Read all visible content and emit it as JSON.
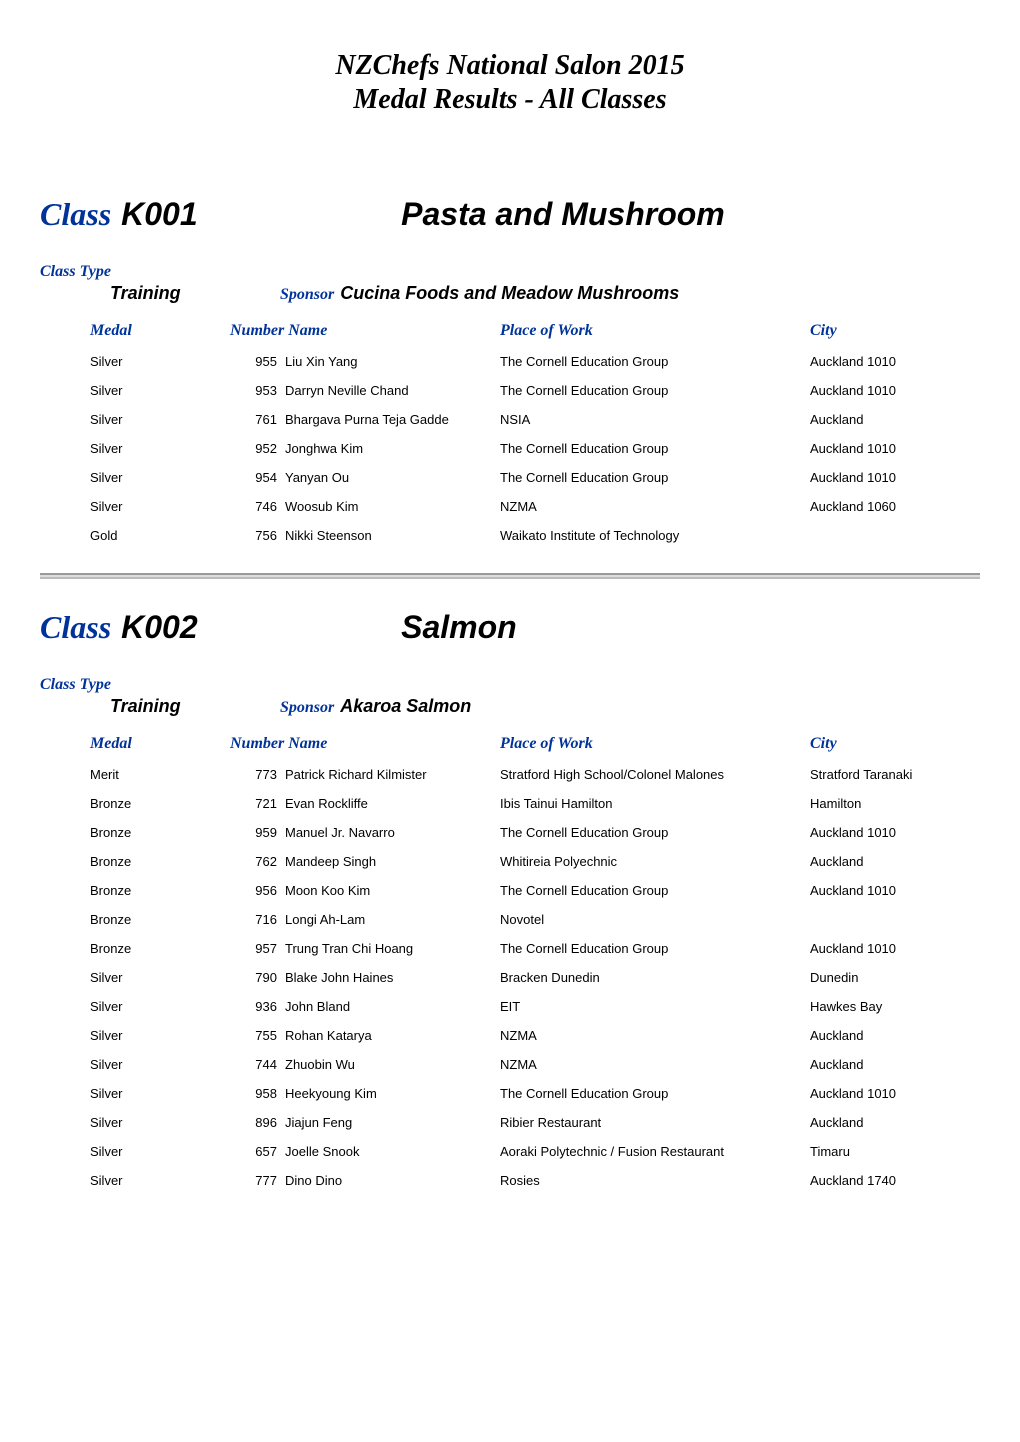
{
  "doc_title": "NZChefs National Salon 2015",
  "doc_subtitle": "Medal Results - All Classes",
  "labels": {
    "class": "Class",
    "class_type": "Class Type",
    "sponsor": "Sponsor",
    "medal": "Medal",
    "number": "Number",
    "name": "Name",
    "place_of_work": "Place of Work",
    "city": "City"
  },
  "classes": [
    {
      "code": "K001",
      "name": "Pasta and Mushroom",
      "type": "Training",
      "sponsor": "Cucina Foods and Meadow Mushrooms",
      "rows": [
        {
          "medal": "Silver",
          "number": "955",
          "name": "Liu Xin Yang",
          "place": "The Cornell Education Group",
          "city": "Auckland 1010"
        },
        {
          "medal": "Silver",
          "number": "953",
          "name": "Darryn Neville Chand",
          "place": "The Cornell Education Group",
          "city": "Auckland 1010"
        },
        {
          "medal": "Silver",
          "number": "761",
          "name": "Bhargava Purna Teja Gadde",
          "place": "NSIA",
          "city": "Auckland"
        },
        {
          "medal": "Silver",
          "number": "952",
          "name": "Jonghwa Kim",
          "place": "The Cornell Education Group",
          "city": "Auckland 1010"
        },
        {
          "medal": "Silver",
          "number": "954",
          "name": "Yanyan Ou",
          "place": "The Cornell Education Group",
          "city": "Auckland 1010"
        },
        {
          "medal": "Silver",
          "number": "746",
          "name": "Woosub Kim",
          "place": "NZMA",
          "city": "Auckland 1060"
        },
        {
          "medal": "Gold",
          "number": "756",
          "name": "Nikki Steenson",
          "place": "Waikato Institute of Technology",
          "city": ""
        }
      ]
    },
    {
      "code": "K002",
      "name": "Salmon",
      "type": "Training",
      "sponsor": "Akaroa Salmon",
      "rows": [
        {
          "medal": "Merit",
          "number": "773",
          "name": "Patrick Richard Kilmister",
          "place": "Stratford High School/Colonel Malones",
          "city": "Stratford Taranaki"
        },
        {
          "medal": "Bronze",
          "number": "721",
          "name": "Evan Rockliffe",
          "place": "Ibis Tainui Hamilton",
          "city": "Hamilton"
        },
        {
          "medal": "Bronze",
          "number": "959",
          "name": "Manuel Jr. Navarro",
          "place": "The Cornell Education Group",
          "city": "Auckland 1010"
        },
        {
          "medal": "Bronze",
          "number": "762",
          "name": "Mandeep Singh",
          "place": "Whitireia Polyechnic",
          "city": "Auckland"
        },
        {
          "medal": "Bronze",
          "number": "956",
          "name": "Moon Koo Kim",
          "place": "The Cornell Education Group",
          "city": "Auckland 1010"
        },
        {
          "medal": "Bronze",
          "number": "716",
          "name": "Longi Ah-Lam",
          "place": "Novotel",
          "city": ""
        },
        {
          "medal": "Bronze",
          "number": "957",
          "name": "Trung Tran Chi Hoang",
          "place": "The Cornell Education Group",
          "city": "Auckland 1010"
        },
        {
          "medal": "Silver",
          "number": "790",
          "name": "Blake John Haines",
          "place": "Bracken Dunedin",
          "city": "Dunedin"
        },
        {
          "medal": "Silver",
          "number": "936",
          "name": "John Bland",
          "place": "EIT",
          "city": "Hawkes Bay"
        },
        {
          "medal": "Silver",
          "number": "755",
          "name": "Rohan Katarya",
          "place": "NZMA",
          "city": "Auckland"
        },
        {
          "medal": "Silver",
          "number": "744",
          "name": "Zhuobin Wu",
          "place": "NZMA",
          "city": "Auckland"
        },
        {
          "medal": "Silver",
          "number": "958",
          "name": "Heekyoung Kim",
          "place": "The Cornell Education Group",
          "city": "Auckland 1010"
        },
        {
          "medal": "Silver",
          "number": "896",
          "name": "Jiajun Feng",
          "place": "Ribier Restaurant",
          "city": "Auckland"
        },
        {
          "medal": "Silver",
          "number": "657",
          "name": "Joelle Snook",
          "place": "Aoraki Polytechnic / Fusion Restaurant",
          "city": "Timaru"
        },
        {
          "medal": "Silver",
          "number": "777",
          "name": "Dino Dino",
          "place": "Rosies",
          "city": "Auckland 1740"
        }
      ]
    }
  ]
}
